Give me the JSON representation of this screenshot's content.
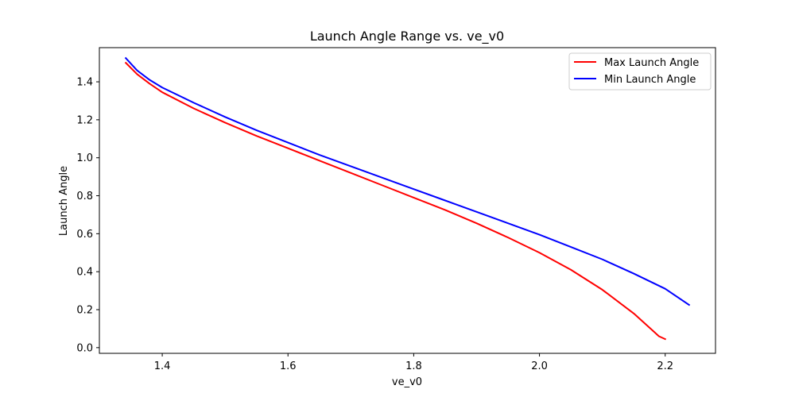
{
  "chart_data": {
    "type": "line",
    "title": "Launch Angle Range vs. ve_v0",
    "xlabel": "ve_v0",
    "ylabel": "Launch Angle",
    "xlim": [
      1.3,
      2.28
    ],
    "ylim": [
      -0.03,
      1.58
    ],
    "xticks": [
      1.4,
      1.6,
      1.8,
      2.0,
      2.2
    ],
    "xtick_labels": [
      "1.4",
      "1.6",
      "1.8",
      "2.0",
      "2.2"
    ],
    "yticks": [
      0.0,
      0.2,
      0.4,
      0.6,
      0.8,
      1.0,
      1.2,
      1.4
    ],
    "ytick_labels": [
      "0.0",
      "0.2",
      "0.4",
      "0.6",
      "0.8",
      "1.0",
      "1.2",
      "1.4"
    ],
    "grid": false,
    "legend_position": "top-right",
    "series": [
      {
        "name": "Max Launch Angle",
        "color": "#ff0000",
        "x": [
          1.342,
          1.36,
          1.38,
          1.4,
          1.45,
          1.5,
          1.55,
          1.6,
          1.65,
          1.7,
          1.75,
          1.8,
          1.85,
          1.9,
          1.95,
          2.0,
          2.05,
          2.1,
          2.15,
          2.18,
          2.19,
          2.2
        ],
        "y": [
          1.5,
          1.44,
          1.39,
          1.345,
          1.26,
          1.185,
          1.115,
          1.05,
          0.985,
          0.92,
          0.855,
          0.79,
          0.725,
          0.655,
          0.58,
          0.5,
          0.41,
          0.305,
          0.18,
          0.09,
          0.06,
          0.045
        ]
      },
      {
        "name": "Min Launch Angle",
        "color": "#0000ff",
        "x": [
          1.342,
          1.36,
          1.38,
          1.4,
          1.45,
          1.5,
          1.55,
          1.6,
          1.65,
          1.7,
          1.75,
          1.8,
          1.85,
          1.9,
          1.95,
          2.0,
          2.05,
          2.1,
          2.15,
          2.2,
          2.238
        ],
        "y": [
          1.525,
          1.46,
          1.41,
          1.37,
          1.29,
          1.215,
          1.145,
          1.08,
          1.015,
          0.955,
          0.895,
          0.835,
          0.775,
          0.715,
          0.655,
          0.595,
          0.53,
          0.465,
          0.39,
          0.31,
          0.225
        ]
      }
    ]
  }
}
